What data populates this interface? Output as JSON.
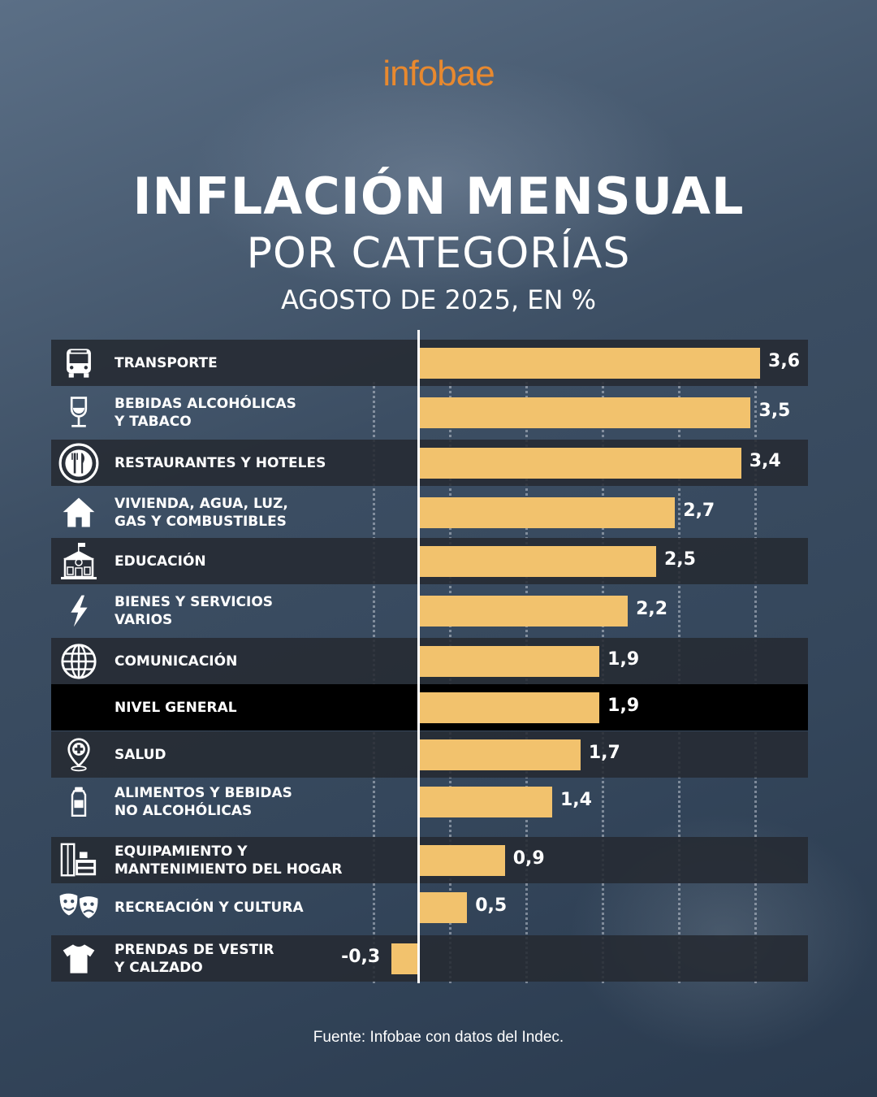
{
  "brand": "infobae",
  "header": {
    "title": "INFLACIÓN MENSUAL",
    "subtitle": "POR CATEGORÍAS",
    "period": "AGOSTO DE 2025, EN %"
  },
  "source": "Fuente: Infobae con datos del Indec.",
  "colors": {
    "bar": "#f2c26d",
    "brand": "#e8892f",
    "highlight_row": "#000000"
  },
  "chart_data": {
    "type": "bar",
    "orientation": "horizontal",
    "title": "INFLACIÓN MENSUAL POR CATEGORÍAS",
    "subtitle": "AGOSTO DE 2025, EN %",
    "unit": "%",
    "xlim": [
      -0.3,
      3.6
    ],
    "grid": true,
    "categories": [
      {
        "lines": [
          "TRANSPORTE"
        ],
        "value": 3.6,
        "label": "3,6",
        "icon": "bus-icon",
        "style": "dark"
      },
      {
        "lines": [
          "BEBIDAS ALCOHÓLICAS",
          "Y TABACO"
        ],
        "value": 3.5,
        "label": "3,5",
        "icon": "wine-glass-icon",
        "style": "none"
      },
      {
        "lines": [
          "RESTAURANTES Y HOTELES"
        ],
        "value": 3.4,
        "label": "3,4",
        "icon": "plate-cutlery-icon",
        "style": "dark"
      },
      {
        "lines": [
          "VIVIENDA, AGUA, LUZ,",
          "GAS Y COMBUSTIBLES"
        ],
        "value": 2.7,
        "label": "2,7",
        "icon": "house-icon",
        "style": "none"
      },
      {
        "lines": [
          "EDUCACIÓN"
        ],
        "value": 2.5,
        "label": "2,5",
        "icon": "school-icon",
        "style": "dark"
      },
      {
        "lines": [
          "BIENES Y SERVICIOS",
          "VARIOS"
        ],
        "value": 2.2,
        "label": "2,2",
        "icon": "lightning-icon",
        "style": "none"
      },
      {
        "lines": [
          "COMUNICACIÓN"
        ],
        "value": 1.9,
        "label": "1,9",
        "icon": "globe-icon",
        "style": "dark"
      },
      {
        "lines": [
          "NIVEL GENERAL"
        ],
        "value": 1.9,
        "label": "1,9",
        "icon": "",
        "style": "black"
      },
      {
        "lines": [
          "SALUD"
        ],
        "value": 1.7,
        "label": "1,7",
        "icon": "health-pin-icon",
        "style": "dark"
      },
      {
        "lines": [
          "ALIMENTOS Y BEBIDAS",
          "NO ALCOHÓLICAS"
        ],
        "value": 1.4,
        "label": "1,4",
        "icon": "bottle-icon",
        "style": "none"
      },
      {
        "lines": [
          "EQUIPAMIENTO Y",
          "MANTENIMIENTO DEL HOGAR"
        ],
        "value": 0.9,
        "label": "0,9",
        "icon": "furniture-icon",
        "style": "dark"
      },
      {
        "lines": [
          "RECREACIÓN Y CULTURA"
        ],
        "value": 0.5,
        "label": "0,5",
        "icon": "theater-masks-icon",
        "style": "none"
      },
      {
        "lines": [
          "PRENDAS DE VESTIR",
          "Y CALZADO"
        ],
        "value": -0.3,
        "label": "-0,3",
        "icon": "tshirt-icon",
        "style": "dark"
      }
    ]
  }
}
